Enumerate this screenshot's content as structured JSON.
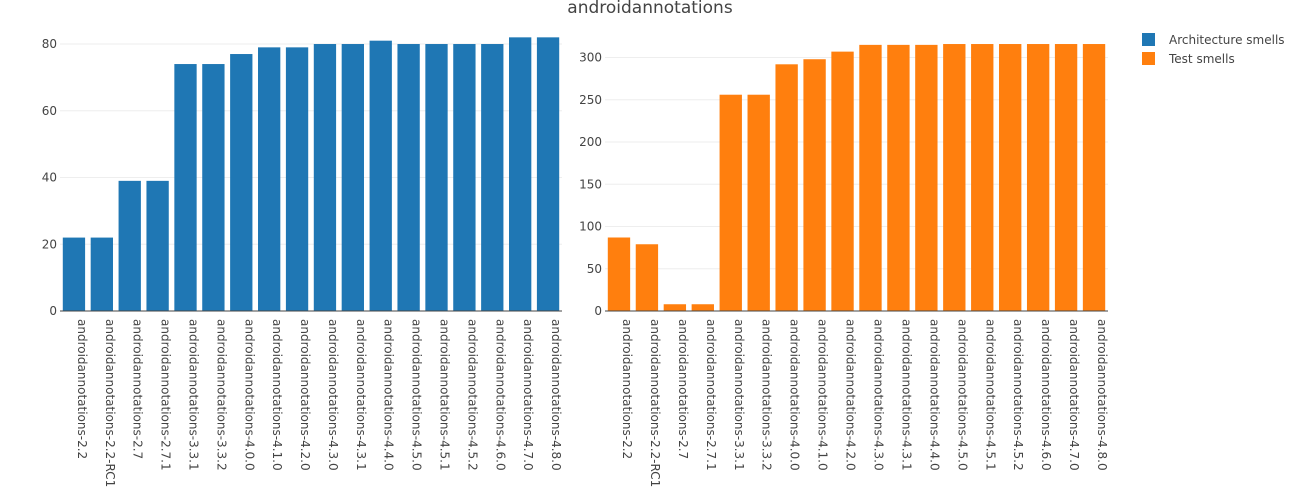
{
  "chart_data": {
    "title": "androidannotations",
    "type": "bar",
    "categories": [
      "androidannotations-2.2",
      "androidannotations-2.2-RC1",
      "androidannotations-2.7",
      "androidannotations-2.7.1",
      "androidannotations-3.3.1",
      "androidannotations-3.3.2",
      "androidannotations-4.0.0",
      "androidannotations-4.1.0",
      "androidannotations-4.2.0",
      "androidannotations-4.3.0",
      "androidannotations-4.3.1",
      "androidannotations-4.4.0",
      "androidannotations-4.5.0",
      "androidannotations-4.5.1",
      "androidannotations-4.5.2",
      "androidannotations-4.6.0",
      "androidannotations-4.7.0",
      "androidannotations-4.8.0"
    ],
    "panels": [
      {
        "series_name": "Architecture smells",
        "color": "#1f77b4",
        "values": [
          22,
          22,
          39,
          39,
          74,
          74,
          77,
          79,
          79,
          80,
          80,
          81,
          80,
          80,
          80,
          80,
          82,
          82
        ],
        "ylim": [
          0,
          84.2
        ],
        "yticks": [
          0,
          20,
          40,
          60,
          80
        ]
      },
      {
        "series_name": "Test smells",
        "color": "#ff7f0e",
        "values": [
          87,
          79,
          8,
          8,
          256,
          256,
          292,
          298,
          307,
          315,
          315,
          315,
          316,
          316,
          316,
          316,
          316,
          316
        ],
        "ylim": [
          0,
          332.6
        ],
        "yticks": [
          0,
          50,
          100,
          150,
          200,
          250,
          300
        ]
      }
    ],
    "legend": {
      "placement": "top-right",
      "entries": [
        "Architecture smells",
        "Test smells"
      ]
    },
    "grid": true
  }
}
